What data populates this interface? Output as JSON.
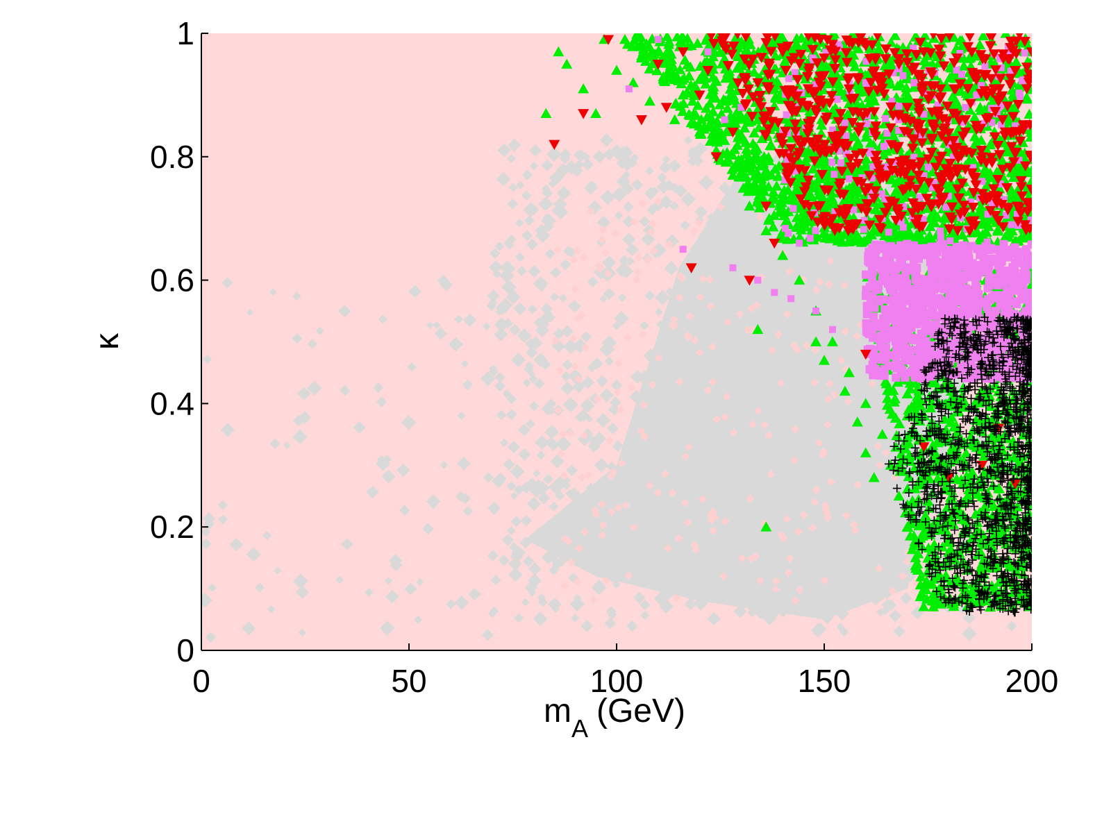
{
  "chart_data": {
    "type": "scatter",
    "xlabel": "m",
    "xlabel_sub": "A",
    "xlabel_unit": "(GeV)",
    "ylabel": "κ",
    "xlim": [
      0,
      200
    ],
    "ylim": [
      0,
      1
    ],
    "x_ticks": [
      0,
      50,
      100,
      150,
      200
    ],
    "y_ticks": [
      0,
      0.2,
      0.4,
      0.6,
      0.8,
      1
    ],
    "x_tick_labels": [
      "0",
      "50",
      "100",
      "150",
      "200"
    ],
    "y_tick_labels": [
      "0",
      "0.2",
      "0.4",
      "0.6",
      "0.8",
      "1"
    ],
    "grid": false,
    "colors": {
      "background_fill": "#ffd9d9",
      "gray_region": "#d9d9d9",
      "pink_diamond": "#ffd0d0",
      "green_triangle": "#00ee00",
      "red_triangle": "#ee0000",
      "violet_square": "#f080f0",
      "black_cross": "#000000"
    },
    "series": [
      {
        "marker": "diamond",
        "color": "#d9d9d9",
        "region": {
          "x": [
            80,
            200
          ],
          "y": [
            0.05,
            0.8
          ]
        }
      },
      {
        "marker": "triangle-up",
        "color": "#00ee00",
        "points": [
          [
            83,
            0.87
          ],
          [
            86,
            0.97
          ],
          [
            88,
            0.95
          ],
          [
            92,
            0.91
          ],
          [
            95,
            0.87
          ],
          [
            97,
            0.99
          ],
          [
            100,
            0.94
          ],
          [
            102,
            0.99
          ],
          [
            104,
            0.92
          ],
          [
            106,
            0.96
          ],
          [
            108,
            0.89
          ],
          [
            110,
            0.97
          ],
          [
            112,
            0.93
          ],
          [
            114,
            0.86
          ],
          [
            116,
            0.9
          ],
          [
            118,
            0.98
          ],
          [
            120,
            0.84
          ],
          [
            122,
            0.95
          ],
          [
            124,
            0.81
          ],
          [
            126,
            0.89
          ],
          [
            128,
            0.77
          ],
          [
            130,
            0.93
          ],
          [
            132,
            0.72
          ],
          [
            134,
            0.86
          ],
          [
            136,
            0.68
          ],
          [
            138,
            0.91
          ],
          [
            140,
            0.64
          ],
          [
            142,
            0.83
          ],
          [
            144,
            0.6
          ],
          [
            146,
            0.75
          ],
          [
            148,
            0.55
          ],
          [
            150,
            0.88
          ],
          [
            152,
            0.5
          ],
          [
            154,
            0.7
          ],
          [
            156,
            0.45
          ],
          [
            158,
            0.82
          ],
          [
            160,
            0.4
          ],
          [
            162,
            0.6
          ],
          [
            164,
            0.35
          ],
          [
            166,
            0.3
          ],
          [
            168,
            0.25
          ],
          [
            170,
            0.2
          ],
          [
            172,
            0.15
          ],
          [
            174,
            0.1
          ],
          [
            176,
            0.08
          ],
          [
            178,
            0.12
          ],
          [
            180,
            0.18
          ],
          [
            182,
            0.22
          ],
          [
            184,
            0.3
          ],
          [
            186,
            0.09
          ],
          [
            188,
            0.14
          ],
          [
            190,
            0.07
          ],
          [
            192,
            0.2
          ],
          [
            194,
            0.11
          ],
          [
            196,
            0.26
          ],
          [
            198,
            0.08
          ],
          [
            200,
            0.16
          ],
          [
            134,
            0.52
          ],
          [
            136,
            0.2
          ],
          [
            166,
            0.42
          ],
          [
            170,
            0.38
          ],
          [
            174,
            0.3
          ],
          [
            178,
            0.35
          ],
          [
            160,
            0.32
          ],
          [
            162,
            0.28
          ],
          [
            158,
            0.37
          ],
          [
            155,
            0.42
          ],
          [
            150,
            0.47
          ],
          [
            148,
            0.5
          ]
        ]
      },
      {
        "marker": "triangle-down",
        "color": "#ee0000",
        "points": [
          [
            85,
            0.82
          ],
          [
            92,
            0.87
          ],
          [
            98,
            0.99
          ],
          [
            106,
            0.86
          ],
          [
            110,
            0.95
          ],
          [
            112,
            0.88
          ],
          [
            116,
            0.97
          ],
          [
            118,
            0.62
          ],
          [
            120,
            0.9
          ],
          [
            122,
            0.94
          ],
          [
            124,
            0.8
          ],
          [
            128,
            0.84
          ],
          [
            132,
            0.6
          ],
          [
            134,
            0.92
          ],
          [
            136,
            0.72
          ],
          [
            138,
            0.66
          ],
          [
            140,
            0.97
          ],
          [
            142,
            0.88
          ],
          [
            144,
            0.78
          ],
          [
            146,
            0.93
          ],
          [
            148,
            0.82
          ],
          [
            150,
            0.96
          ],
          [
            152,
            0.7
          ],
          [
            154,
            0.87
          ],
          [
            156,
            0.91
          ],
          [
            158,
            0.76
          ],
          [
            160,
            0.98
          ],
          [
            162,
            0.84
          ],
          [
            164,
            0.93
          ],
          [
            166,
            0.79
          ],
          [
            168,
            0.95
          ],
          [
            170,
            0.88
          ],
          [
            172,
            0.72
          ],
          [
            174,
            0.97
          ],
          [
            176,
            0.83
          ],
          [
            178,
            0.91
          ],
          [
            180,
            0.77
          ],
          [
            182,
            0.96
          ],
          [
            184,
            0.86
          ],
          [
            186,
            0.93
          ],
          [
            188,
            0.8
          ],
          [
            190,
            0.98
          ],
          [
            192,
            0.89
          ],
          [
            194,
            0.75
          ],
          [
            196,
            0.94
          ],
          [
            198,
            0.85
          ],
          [
            200,
            0.97
          ],
          [
            174,
            0.33
          ],
          [
            180,
            0.28
          ],
          [
            188,
            0.3
          ],
          [
            192,
            0.36
          ],
          [
            196,
            0.27
          ],
          [
            160,
            0.48
          ]
        ]
      },
      {
        "marker": "square",
        "color": "#f080f0",
        "region": {
          "x": [
            155,
            200
          ],
          "y": [
            0.44,
            0.66
          ]
        },
        "points": [
          [
            103,
            0.91
          ],
          [
            110,
            0.99
          ],
          [
            116,
            0.65
          ],
          [
            122,
            0.97
          ],
          [
            126,
            0.86
          ],
          [
            130,
            0.88
          ],
          [
            140,
            0.84
          ],
          [
            144,
            0.66
          ],
          [
            150,
            0.81
          ],
          [
            154,
            0.79
          ],
          [
            160,
            0.92
          ],
          [
            164,
            0.7
          ],
          [
            168,
            0.86
          ],
          [
            172,
            0.75
          ],
          [
            176,
            0.9
          ],
          [
            180,
            0.82
          ],
          [
            184,
            0.88
          ],
          [
            188,
            0.76
          ],
          [
            192,
            0.93
          ],
          [
            196,
            0.85
          ],
          [
            200,
            0.72
          ],
          [
            128,
            0.62
          ],
          [
            134,
            0.6
          ],
          [
            138,
            0.58
          ],
          [
            142,
            0.57
          ],
          [
            148,
            0.55
          ],
          [
            152,
            0.52
          ]
        ]
      },
      {
        "marker": "cross",
        "color": "#000000",
        "region": {
          "x": [
            165,
            200
          ],
          "y": [
            0.06,
            0.54
          ]
        }
      }
    ]
  }
}
